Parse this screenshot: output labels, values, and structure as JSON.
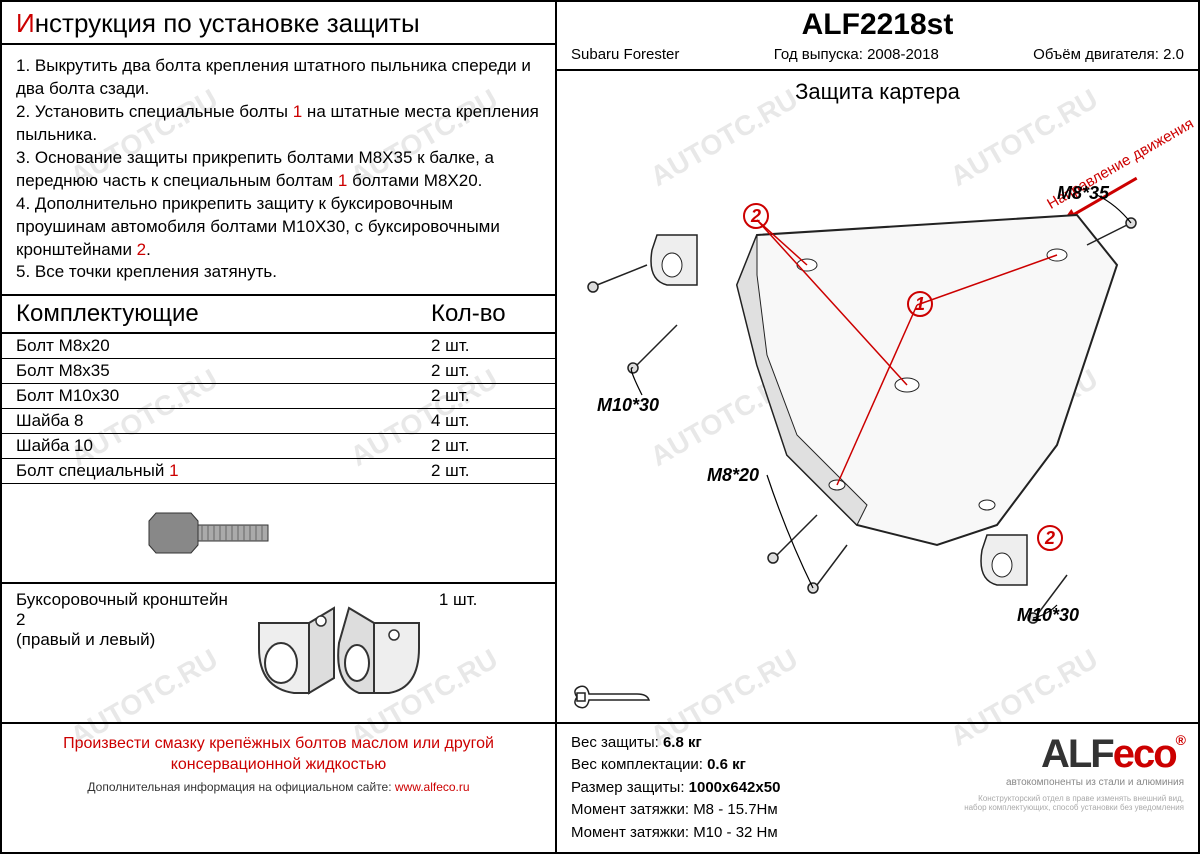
{
  "watermark_text": "AUTOTC.RU",
  "instructions": {
    "title_prefix": "И",
    "title_rest": "нструкция по установке защиты",
    "steps_html": "1. Выкрутить два болта крепления штатного пыльника спереди и два болта сзади.<br>2. Установить специальные болты <span class='ref1'>1</span> на штатные места крепления пыльника.<br>3. Основание защиты прикрепить болтами М8Х35 к балке, а переднюю часть к специальным болтам <span class='ref1'>1</span> болтами М8Х20.<br>4. Дополнительно прикрепить защиту к буксировочным проушинам автомобиля болтами М10Х30, с буксировочными кронштейнами <span class='ref2'>2</span>.<br>5. Все точки крепления затянуть."
  },
  "components": {
    "header_label": "Комплектующие",
    "qty_label": "Кол-во",
    "rows": [
      {
        "name": "Болт М8х20",
        "qty": "2 шт."
      },
      {
        "name": "Болт М8х35",
        "qty": "2 шт."
      },
      {
        "name": "Болт М10х30",
        "qty": "2 шт."
      },
      {
        "name": "Шайба 8",
        "qty": "4 шт."
      },
      {
        "name": "Шайба 10",
        "qty": "2 шт."
      }
    ],
    "special_bolt": {
      "name": "Болт специальный ",
      "ref": "1",
      "qty": "2 шт."
    },
    "bracket": {
      "name": "Буксоровочный кронштейн ",
      "ref": "2",
      "suffix": "(правый и левый)",
      "qty": "1 шт."
    }
  },
  "footer": {
    "warning": "Произвести смазку крепёжных болтов маслом или другой консервационной жидкостью",
    "info": "Дополнительная информация на официальном сайте: ",
    "link": "www.alfeco.ru"
  },
  "part": {
    "number": "ALF2218st",
    "vehicle": "Subaru Forester",
    "years_label": "Год выпуска: ",
    "years": "2008-2018",
    "engine_label": "Объём двигателя: ",
    "engine": "2.0",
    "protection_title": "Защита картера",
    "direction": "Направление движения"
  },
  "callouts": {
    "m8_35": "M8*35",
    "m10_30_a": "M10*30",
    "m8_20": "M8*20",
    "m10_30_b": "M10*30",
    "ref1": "1",
    "ref2a": "2",
    "ref2b": "2"
  },
  "specs": {
    "weight_label": "Вес защиты: ",
    "weight": "6.8 кг",
    "kit_weight_label": "Вес комплектации: ",
    "kit_weight": "0.6 кг",
    "size_label": "Размер защиты: ",
    "size": "1000х642х50",
    "torque1_label": "Момент затяжки:   ",
    "torque1": "M8 - 15.7Нм",
    "torque2_label": "Момент затяжки:   ",
    "torque2": "M10 - 32 Нм"
  },
  "logo": {
    "alf": "ALF",
    "eco": "eco",
    "reg": "®",
    "sub": "автокомпоненты из стали и алюминия",
    "disclaimer": "Конструкторский отдел в праве изменять внешний вид, набор комплектующих, способ установки без уведомления"
  }
}
